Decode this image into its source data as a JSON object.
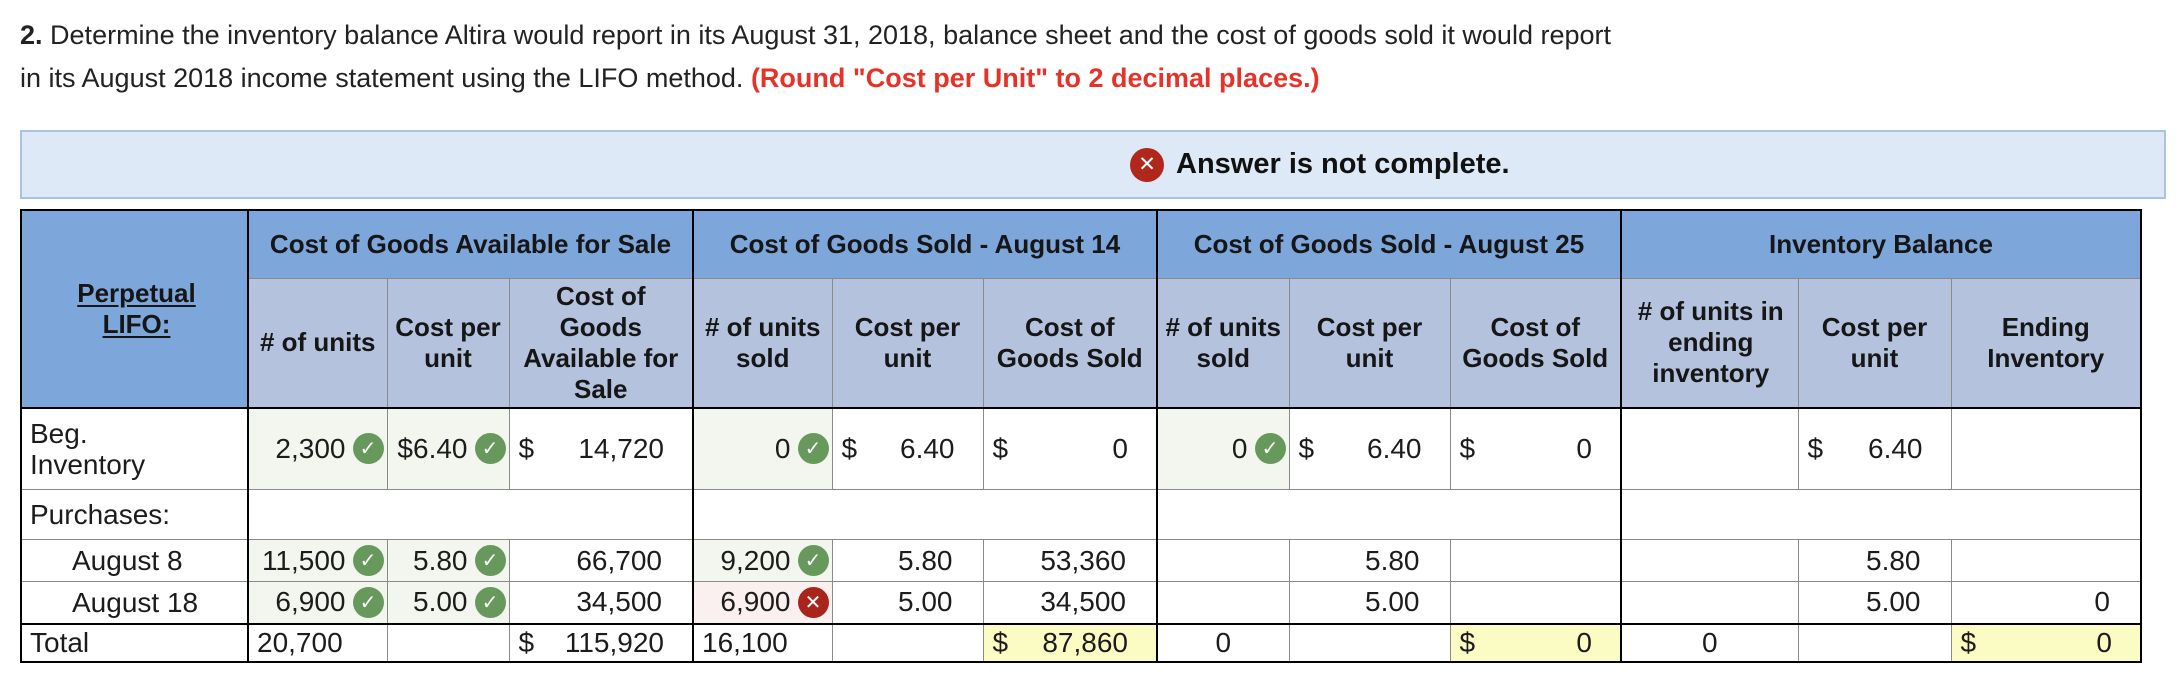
{
  "title": {
    "number": "2.",
    "line1": "Determine the inventory balance Altira would report in its August 31, 2018, balance sheet and the cost of goods sold it would report",
    "line2": "in its August 2018 income statement using the LIFO method.",
    "note": "(Round \"Cost per Unit\" to 2 decimal places.)"
  },
  "banner": {
    "text": "Answer is not complete."
  },
  "icons": {
    "check": "✓",
    "cross": "✕"
  },
  "colors": {
    "group_header": "#7da6db",
    "sub_header": "#b4c2de",
    "banner_bg": "#dde9f6",
    "correct_green": "#67995c",
    "incorrect_red": "#a9251c",
    "calculated_yellow": "#fbfbc4",
    "note_red": "#e63228"
  },
  "table": {
    "corner": {
      "lines": [
        "Perpetual",
        "LIFO:"
      ]
    },
    "groups": [
      "Cost of Goods Available for Sale",
      "Cost of Goods Sold - August 14",
      "Cost of Goods Sold - August 25",
      "Inventory Balance"
    ],
    "subheaders": [
      "# of units",
      "Cost per unit",
      "Cost of Goods Available for Sale",
      "# of units sold",
      "Cost per unit",
      "Cost of Goods Sold",
      "# of units sold",
      "Cost per unit",
      "Cost of Goods Sold",
      "# of units in ending inventory",
      "Cost per unit",
      "Ending Inventory"
    ],
    "rows": [
      {
        "id": "beg",
        "cells": [
          {
            "k": "label",
            "lines": [
              "Beg.",
              "Inventory"
            ]
          },
          {
            "k": "num",
            "text": "2,300",
            "status": "correct",
            "bg": "green",
            "input": true
          },
          {
            "k": "num",
            "text": "$6.40",
            "status": "correct",
            "bg": "green",
            "input": true
          },
          {
            "k": "money",
            "dollar": "$",
            "text": "14,720"
          },
          {
            "k": "num",
            "text": "0",
            "status": "correct",
            "bg": "green",
            "input": true
          },
          {
            "k": "money",
            "dollar": "$",
            "text": "6.40"
          },
          {
            "k": "money",
            "dollar": "$",
            "text": "0"
          },
          {
            "k": "num",
            "text": "0",
            "status": "correct",
            "bg": "green",
            "input": true
          },
          {
            "k": "money",
            "dollar": "$",
            "text": "6.40"
          },
          {
            "k": "money",
            "dollar": "$",
            "text": "0"
          },
          {},
          {
            "k": "money",
            "dollar": "$",
            "text": "6.40"
          },
          {}
        ]
      },
      {
        "id": "purchases",
        "cells": [
          {
            "k": "label",
            "lines": [
              "Purchases:"
            ]
          },
          {
            "span": 3
          },
          {
            "span": 3
          },
          {
            "span": 3
          },
          {
            "span": 3
          }
        ]
      },
      {
        "id": "aug8",
        "cells": [
          {
            "k": "label",
            "lines": [
              "August 8"
            ],
            "indent": true
          },
          {
            "k": "num",
            "text": "11,500",
            "status": "correct",
            "bg": "green",
            "input": true
          },
          {
            "k": "num",
            "text": "5.80",
            "status": "correct",
            "bg": "green",
            "input": true
          },
          {
            "k": "num",
            "text": "66,700"
          },
          {
            "k": "num",
            "text": "9,200",
            "status": "correct",
            "bg": "green",
            "input": true
          },
          {
            "k": "num",
            "text": "5.80"
          },
          {
            "k": "num",
            "text": "53,360"
          },
          {},
          {
            "k": "num",
            "text": "5.80"
          },
          {},
          {},
          {
            "k": "num",
            "text": "5.80"
          },
          {}
        ]
      },
      {
        "id": "aug18",
        "cells": [
          {
            "k": "label",
            "lines": [
              "August 18"
            ],
            "indent": true
          },
          {
            "k": "num",
            "text": "6,900",
            "status": "correct",
            "bg": "green",
            "input": true
          },
          {
            "k": "num",
            "text": "5.00",
            "status": "correct",
            "bg": "green",
            "input": true
          },
          {
            "k": "num",
            "text": "34,500"
          },
          {
            "k": "num",
            "text": "6,900",
            "status": "incorrect",
            "bg": "pink",
            "input": true
          },
          {
            "k": "num",
            "text": "5.00"
          },
          {
            "k": "num",
            "text": "34,500"
          },
          {},
          {
            "k": "num",
            "text": "5.00"
          },
          {},
          {},
          {
            "k": "num",
            "text": "5.00"
          },
          {
            "k": "num",
            "text": "0"
          }
        ]
      },
      {
        "id": "total",
        "cells": [
          {
            "k": "label",
            "lines": [
              "Total"
            ]
          },
          {
            "k": "num",
            "text": "20,700",
            "align": "left"
          },
          {},
          {
            "k": "money",
            "dollar": "$",
            "text": "115,920"
          },
          {
            "k": "num",
            "text": "16,100",
            "align": "left",
            "box": true,
            "dbl": true,
            "input": true
          },
          {},
          {
            "k": "money",
            "dollar": "$",
            "text": "87,860",
            "bg": "yellow",
            "box": true,
            "dbl": true
          },
          {
            "k": "num",
            "text": "0",
            "align": "center",
            "box": true,
            "dbl": true,
            "input": true
          },
          {},
          {
            "k": "money",
            "dollar": "$",
            "text": "0",
            "bg": "yellow",
            "box": true,
            "dbl": true
          },
          {
            "k": "num",
            "text": "0",
            "align": "center",
            "box": true,
            "dbl": true,
            "input": true
          },
          {},
          {
            "k": "money",
            "dollar": "$",
            "text": "0",
            "bg": "yellow",
            "box": true,
            "dbl": true
          }
        ]
      }
    ]
  }
}
